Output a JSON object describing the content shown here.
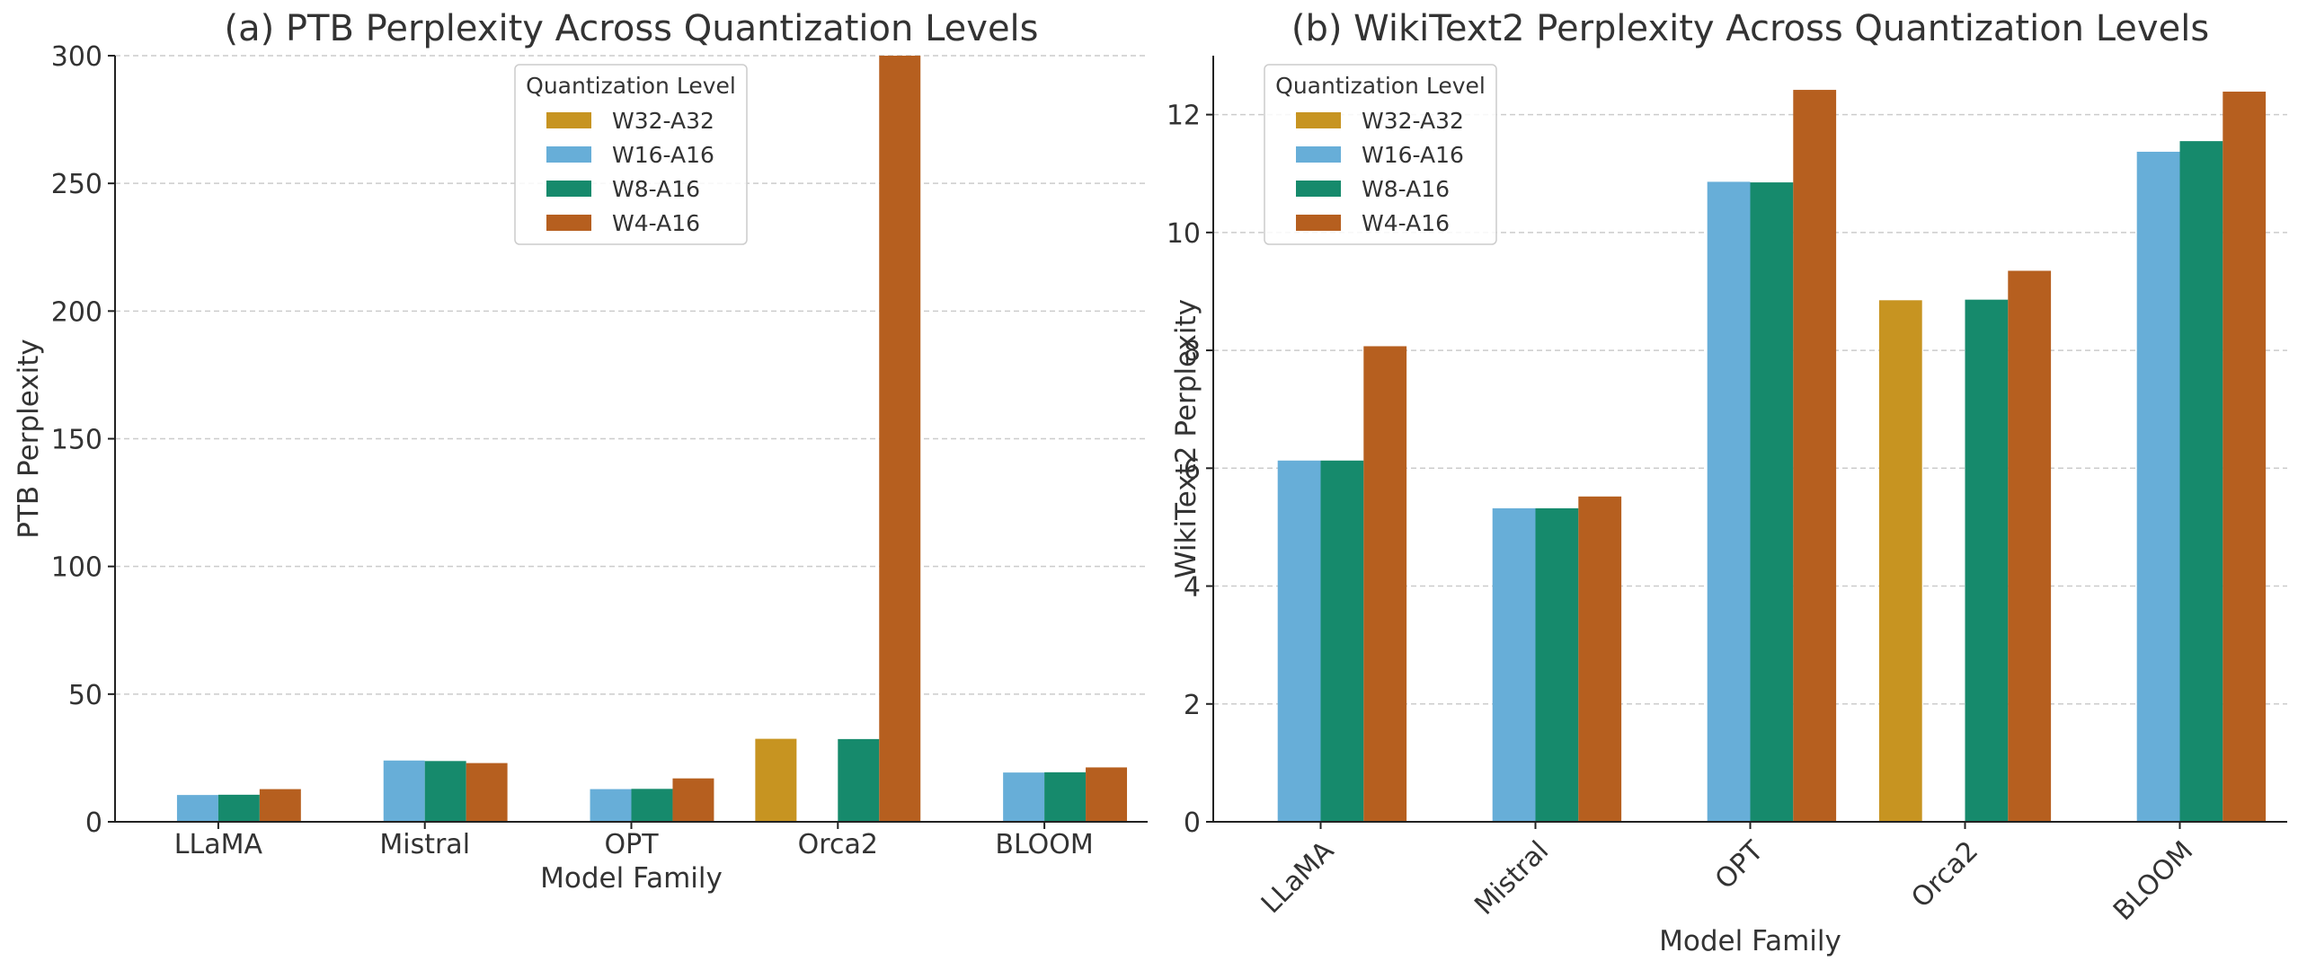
{
  "chart_data": [
    {
      "type": "bar",
      "title": "(a) PTB Perplexity Across Quantization Levels",
      "xlabel": "Model Family",
      "ylabel": "PTB Perplexity",
      "categories": [
        "LLaMA",
        "Mistral",
        "OPT",
        "Orca2",
        "BLOOM"
      ],
      "ylim": [
        0,
        300
      ],
      "yticks": [
        0,
        50,
        100,
        150,
        200,
        250,
        300
      ],
      "xtick_rotation": 0,
      "grid": "horizontal dashed",
      "legend": {
        "title": "Quantization Level",
        "placement": "top-center"
      },
      "series": [
        {
          "name": "W32-A32",
          "color": "#c79421",
          "values": [
            null,
            null,
            null,
            32.5,
            null
          ]
        },
        {
          "name": "W16-A16",
          "color": "#67aed8",
          "values": [
            10.5,
            24.0,
            12.8,
            null,
            19.3
          ]
        },
        {
          "name": "W8-A16",
          "color": "#168a6c",
          "values": [
            10.6,
            23.8,
            12.9,
            32.4,
            19.4
          ]
        },
        {
          "name": "W4-A16",
          "color": "#b65f1f",
          "values": [
            12.8,
            23.0,
            17.0,
            300,
            21.3
          ]
        }
      ]
    },
    {
      "type": "bar",
      "title": "(b) WikiText2 Perplexity Across Quantization Levels",
      "xlabel": "Model Family",
      "ylabel": "WikiText2 Perplexity",
      "categories": [
        "LLaMA",
        "Mistral",
        "OPT",
        "Orca2",
        "BLOOM"
      ],
      "ylim": [
        0,
        13
      ],
      "yticks": [
        0,
        2,
        4,
        6,
        8,
        10,
        12
      ],
      "xtick_rotation": -45,
      "grid": "horizontal dashed",
      "legend": {
        "title": "Quantization Level",
        "placement": "top-left"
      },
      "series": [
        {
          "name": "W32-A32",
          "color": "#c79421",
          "values": [
            null,
            null,
            null,
            8.85,
            null
          ]
        },
        {
          "name": "W16-A16",
          "color": "#67aed8",
          "values": [
            6.13,
            5.32,
            10.86,
            null,
            11.37
          ]
        },
        {
          "name": "W8-A16",
          "color": "#168a6c",
          "values": [
            6.13,
            5.32,
            10.85,
            8.86,
            11.55
          ]
        },
        {
          "name": "W4-A16",
          "color": "#b65f1f",
          "values": [
            8.07,
            5.52,
            12.42,
            9.35,
            12.39
          ]
        }
      ]
    }
  ]
}
